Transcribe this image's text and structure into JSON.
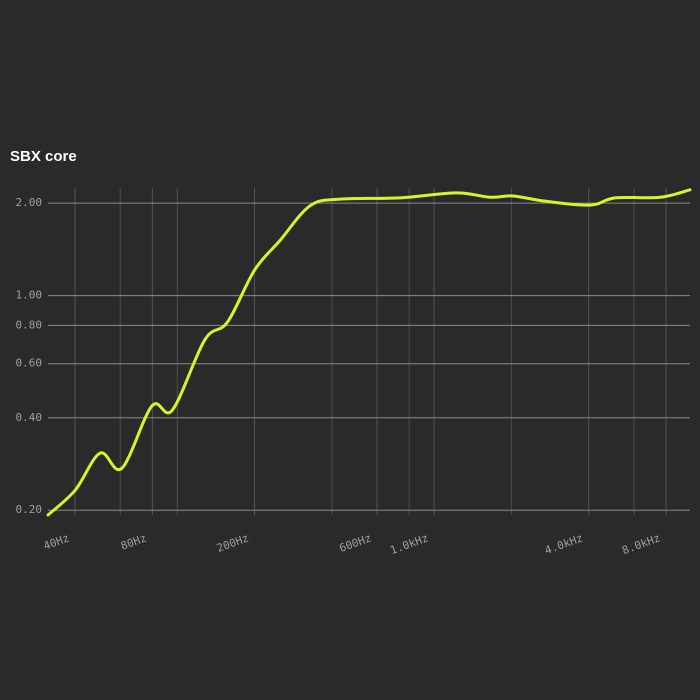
{
  "chart_data": {
    "type": "line",
    "title": "SBX core",
    "xscale": "log",
    "yscale": "log",
    "grid": true,
    "x": [
      31.4,
      40,
      50.1,
      60.9,
      79.7,
      95.8,
      128,
      157,
      200,
      251,
      329,
      431,
      737,
      1219,
      1652,
      2026,
      2706,
      4047,
      5070,
      7590,
      9919
    ],
    "series": [
      {
        "name": "SBX core",
        "color": "#d4f52a",
        "values": [
          0.193,
          0.232,
          0.307,
          0.274,
          0.437,
          0.424,
          0.717,
          0.82,
          1.21,
          1.51,
          1.96,
          2.06,
          2.08,
          2.16,
          2.09,
          2.11,
          2.03,
          1.97,
          2.08,
          2.09,
          2.21
        ]
      }
    ],
    "xlim": [
      31.4,
      9919
    ],
    "ylim": [
      0.193,
      2.24
    ],
    "xticks": [
      {
        "value": 40,
        "label": "40Hz"
      },
      {
        "value": 80,
        "label": "80Hz"
      },
      {
        "value": 200,
        "label": "200Hz"
      },
      {
        "value": 600,
        "label": "600Hz"
      },
      {
        "value": 1000,
        "label": "1.0kHz"
      },
      {
        "value": 4000,
        "label": "4.0kHz"
      },
      {
        "value": 8000,
        "label": "8.0kHz"
      }
    ],
    "xminor": [
      60,
      100,
      400,
      800,
      2000,
      6000
    ],
    "yticks": [
      {
        "value": 0.2,
        "label": "0.20"
      },
      {
        "value": 0.4,
        "label": "0.40"
      },
      {
        "value": 0.6,
        "label": "0.60"
      },
      {
        "value": 0.8,
        "label": "0.80"
      },
      {
        "value": 1,
        "label": "1.00"
      },
      {
        "value": 2,
        "label": "2.00"
      }
    ]
  }
}
